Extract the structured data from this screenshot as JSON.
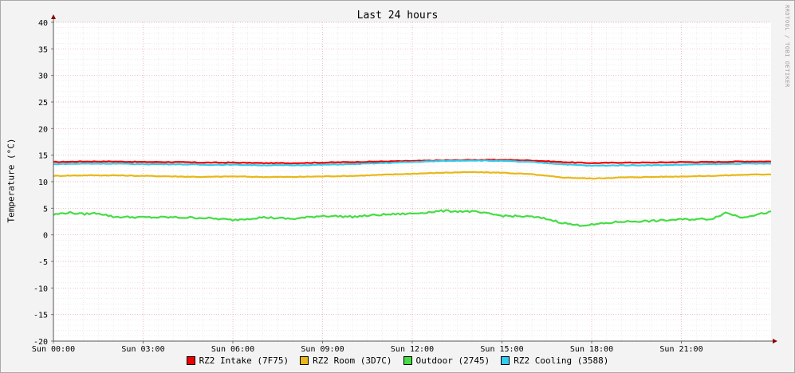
{
  "chart_data": {
    "type": "line",
    "title": "Last 24 hours",
    "ylabel": "Temperature (°C)",
    "watermark": "RRDTOOL / TOBI OETIKER",
    "ylim": [
      -20,
      40
    ],
    "yticks": [
      40,
      35,
      30,
      25,
      20,
      15,
      10,
      5,
      0,
      -5,
      -10,
      -15,
      -20
    ],
    "xlim": [
      0,
      24
    ],
    "xticks": [
      {
        "x": 0,
        "label": "Sun 00:00"
      },
      {
        "x": 3,
        "label": "Sun 03:00"
      },
      {
        "x": 6,
        "label": "Sun 06:00"
      },
      {
        "x": 9,
        "label": "Sun 09:00"
      },
      {
        "x": 12,
        "label": "Sun 12:00"
      },
      {
        "x": 15,
        "label": "Sun 15:00"
      },
      {
        "x": 18,
        "label": "Sun 18:00"
      },
      {
        "x": 21,
        "label": "Sun 21:00"
      }
    ],
    "series": [
      {
        "name": "RZ2 Intake (7F75)",
        "color": "#ee0000",
        "x": [
          0,
          1,
          2,
          3,
          4,
          5,
          6,
          7,
          8,
          9,
          10,
          11,
          12,
          13,
          14,
          15,
          16,
          17,
          18,
          19,
          20,
          21,
          22,
          23,
          24
        ],
        "y": [
          13.7,
          13.8,
          13.8,
          13.7,
          13.7,
          13.6,
          13.6,
          13.5,
          13.5,
          13.6,
          13.7,
          13.8,
          13.9,
          14.0,
          14.1,
          14.1,
          14.0,
          13.7,
          13.5,
          13.6,
          13.6,
          13.7,
          13.7,
          13.8,
          13.8
        ]
      },
      {
        "name": "RZ2 Room (3D7C)",
        "color": "#e8b818",
        "x": [
          0,
          1,
          2,
          3,
          4,
          5,
          6,
          7,
          8,
          9,
          10,
          11,
          12,
          13,
          14,
          15,
          16,
          17,
          18,
          19,
          20,
          21,
          22,
          23,
          24
        ],
        "y": [
          11.1,
          11.2,
          11.2,
          11.1,
          11.0,
          10.9,
          11.0,
          10.9,
          10.9,
          11.0,
          11.1,
          11.3,
          11.5,
          11.7,
          11.8,
          11.7,
          11.4,
          10.8,
          10.6,
          10.8,
          10.9,
          11.0,
          11.1,
          11.3,
          11.4
        ]
      },
      {
        "name": "Outdoor (2745)",
        "color": "#44dd44",
        "x": [
          0,
          0.5,
          1,
          1.5,
          2,
          3,
          4,
          5,
          6,
          7,
          8,
          9,
          10,
          11,
          12,
          13,
          14,
          15,
          16,
          16.5,
          17,
          17.5,
          18,
          19,
          20,
          21,
          22,
          22.5,
          23,
          24
        ],
        "y": [
          3.8,
          4.2,
          3.9,
          4.1,
          3.4,
          3.3,
          3.3,
          3.2,
          2.8,
          3.3,
          3.0,
          3.6,
          3.4,
          3.8,
          4.0,
          4.5,
          4.4,
          3.6,
          3.4,
          3.0,
          2.3,
          1.8,
          1.9,
          2.5,
          2.6,
          2.9,
          3.0,
          4.2,
          3.3,
          4.3
        ]
      },
      {
        "name": "RZ2 Cooling (3588)",
        "color": "#33ccee",
        "x": [
          0,
          1,
          2,
          3,
          4,
          5,
          6,
          7,
          8,
          9,
          10,
          11,
          12,
          13,
          14,
          15,
          16,
          17,
          18,
          19,
          20,
          21,
          22,
          23,
          24
        ],
        "y": [
          13.3,
          13.4,
          13.4,
          13.3,
          13.3,
          13.2,
          13.2,
          13.1,
          13.1,
          13.2,
          13.3,
          13.5,
          13.7,
          13.9,
          14.0,
          13.9,
          13.7,
          13.3,
          13.0,
          13.1,
          13.1,
          13.2,
          13.3,
          13.4,
          13.4
        ]
      }
    ]
  }
}
